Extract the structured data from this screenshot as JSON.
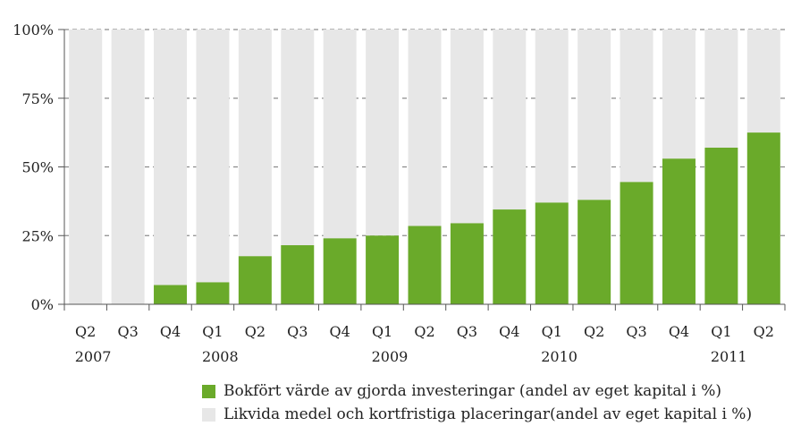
{
  "chart_data": {
    "type": "bar",
    "stacked": true,
    "percent_stacked": true,
    "categories": [
      "Q2",
      "Q3",
      "Q4",
      "Q1",
      "Q2",
      "Q3",
      "Q4",
      "Q1",
      "Q2",
      "Q3",
      "Q4",
      "Q1",
      "Q2",
      "Q3",
      "Q4",
      "Q1",
      "Q2"
    ],
    "years": [
      {
        "label": "2007",
        "start_index": 0
      },
      {
        "label": "2008",
        "start_index": 3
      },
      {
        "label": "2009",
        "start_index": 7
      },
      {
        "label": "2010",
        "start_index": 11
      },
      {
        "label": "2011",
        "start_index": 15
      }
    ],
    "series": [
      {
        "name": "Bokfört värde av gjorda investeringar (andel av eget kapital i %)",
        "color": "#6aaa2a",
        "values": [
          0,
          0,
          7,
          8,
          17.5,
          21.5,
          24,
          25,
          28.5,
          29.5,
          34.5,
          37,
          38,
          44.5,
          53,
          57,
          62.5
        ]
      },
      {
        "name": "Likvida medel och kortfristiga placeringar(andel av eget kapital i %)",
        "color": "#e7e7e7",
        "values": [
          100,
          100,
          93,
          92,
          82.5,
          78.5,
          76,
          75,
          71.5,
          70.5,
          65.5,
          63,
          62,
          55.5,
          47,
          43,
          37.5
        ]
      }
    ],
    "yticks": [
      "0%",
      "25%",
      "50%",
      "75%",
      "100%"
    ],
    "ylim": [
      0,
      100
    ],
    "grid": true,
    "legend_position": "bottom-right"
  }
}
